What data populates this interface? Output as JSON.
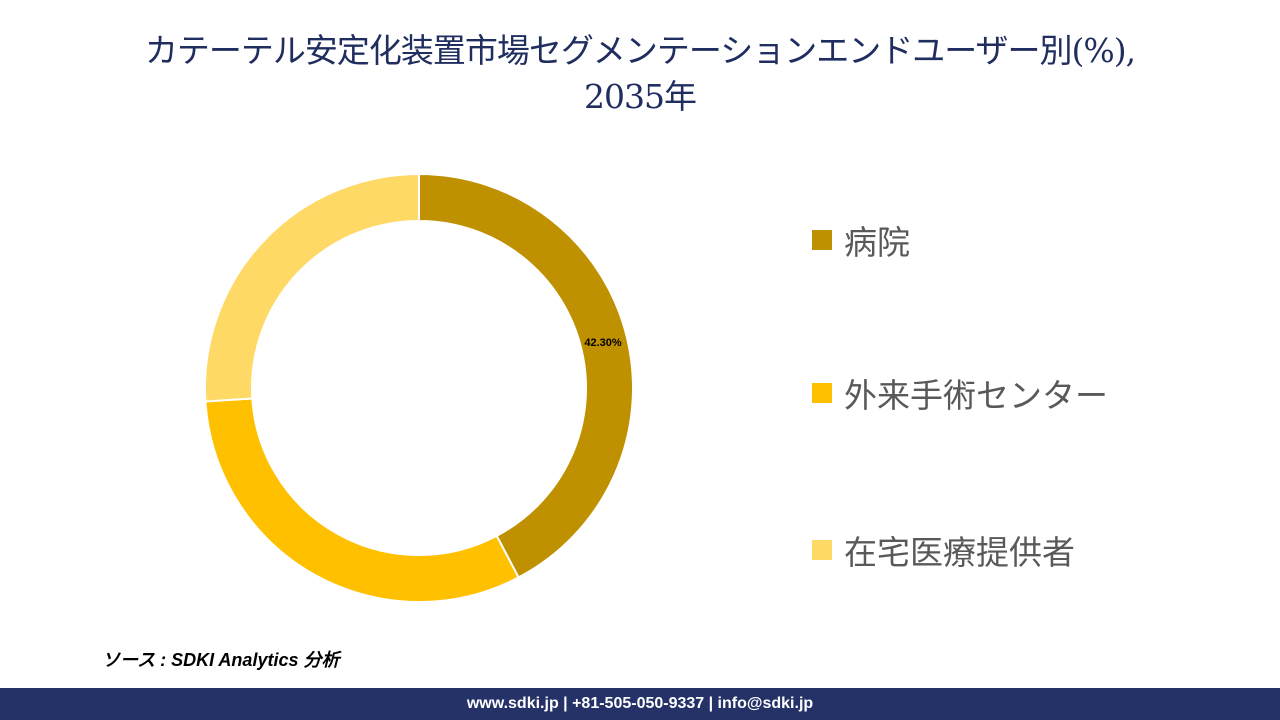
{
  "title": {
    "line1": "カテーテル安定化装置市場セグメンテーションエンドユーザー別(%),",
    "line2": "2035年"
  },
  "chart_data": {
    "type": "pie",
    "subtype": "donut",
    "title": "カテーテル安定化装置市場セグメンテーションエンドユーザー別(%), 2035年",
    "categories": [
      "病院",
      "外来手術センター",
      "在宅医療提供者"
    ],
    "values": [
      42.3,
      31.7,
      26.0
    ],
    "colors": [
      "#bf9000",
      "#ffc000",
      "#ffd966"
    ],
    "data_labels": [
      "42.30%",
      "",
      ""
    ],
    "legend_position": "right",
    "start_angle_deg": 0,
    "direction": "clockwise"
  },
  "legend": {
    "items": [
      {
        "label": "病院",
        "color": "#bf9000"
      },
      {
        "label": "外来手術センター",
        "color": "#ffc000"
      },
      {
        "label": "在宅医療提供者",
        "color": "#ffd966"
      }
    ]
  },
  "source": "ソース : SDKI Analytics 分析",
  "footer": "www.sdki.jp | +81-505-050-9337 | info@sdki.jp"
}
